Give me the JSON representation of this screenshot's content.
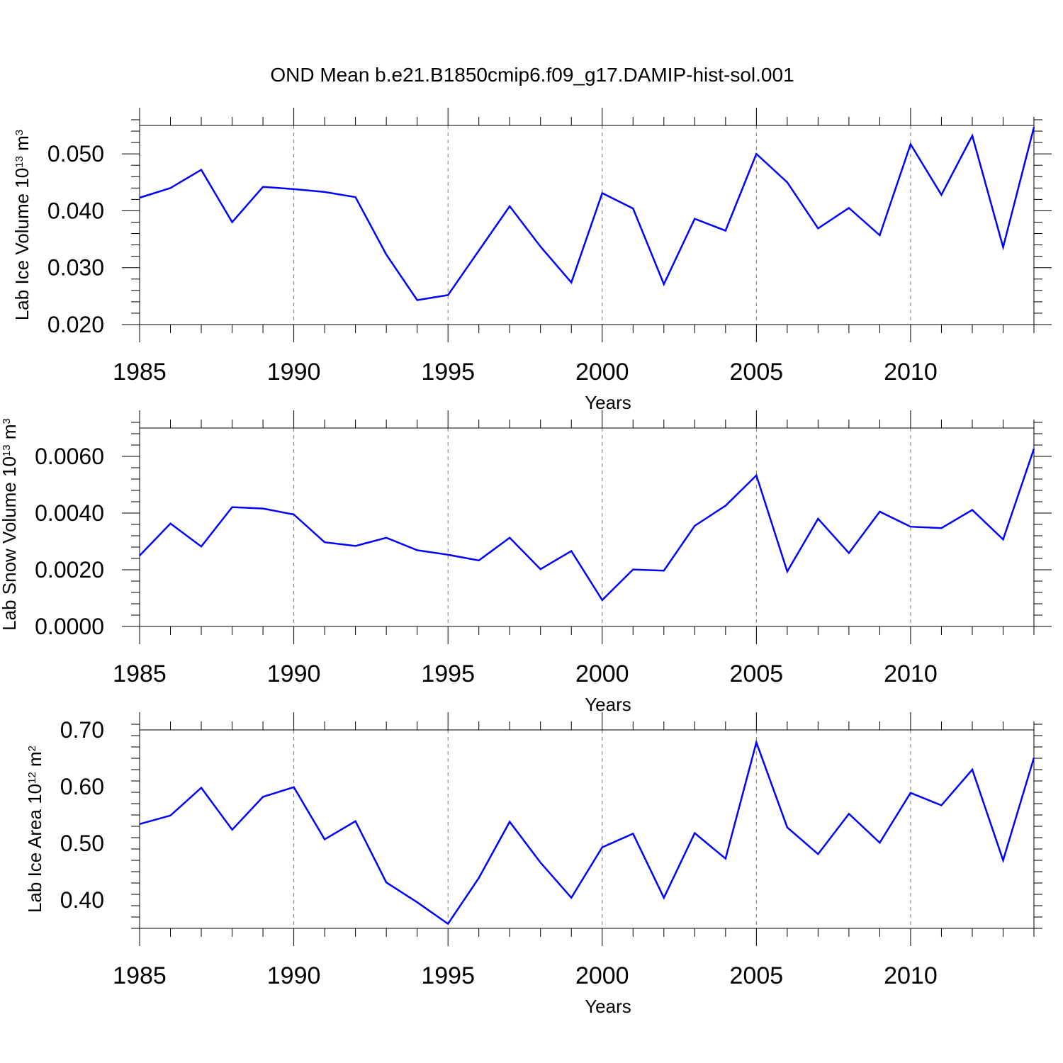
{
  "chart_data": [
    {
      "type": "line",
      "title": "OND Mean b.e21.B1850cmip6.f09_g17.DAMIP-hist-sol.001",
      "xlabel": "Years",
      "ylabel": {
        "main": "Lab Ice Volume 10",
        "exp": "13",
        "mid": " m",
        "unit_exp": "3"
      },
      "xlim": [
        1985,
        2014
      ],
      "ylim": [
        0.02,
        0.055
      ],
      "x_ticks": [
        1985,
        1990,
        1995,
        2000,
        2005,
        2010
      ],
      "x_tick_labels": [
        "1985",
        "1990",
        "1995",
        "2000",
        "2005",
        "2010"
      ],
      "y_ticks": [
        0.02,
        0.03,
        0.04,
        0.05
      ],
      "y_tick_labels": [
        "0.020",
        "0.030",
        "0.040",
        "0.050"
      ],
      "y_minor_step": 0.002,
      "x_grid": "dashed vertical at major ticks",
      "color": "#0000ff",
      "x": [
        1985,
        1986,
        1987,
        1988,
        1989,
        1990,
        1991,
        1992,
        1993,
        1994,
        1995,
        1996,
        1997,
        1998,
        1999,
        2000,
        2001,
        2002,
        2003,
        2004,
        2005,
        2006,
        2007,
        2008,
        2009,
        2010,
        2011,
        2012,
        2013,
        2014
      ],
      "values": [
        0.0423,
        0.044,
        0.0472,
        0.038,
        0.0442,
        0.0438,
        0.0433,
        0.0424,
        0.0323,
        0.0243,
        0.0252,
        0.033,
        0.0408,
        0.0337,
        0.0274,
        0.0431,
        0.0404,
        0.0271,
        0.0386,
        0.0365,
        0.05,
        0.045,
        0.0369,
        0.0405,
        0.0357,
        0.0517,
        0.0428,
        0.0532,
        0.0336,
        0.0547
      ]
    },
    {
      "type": "line",
      "xlabel": "Years",
      "ylabel": {
        "main": "Lab Snow Volume 10",
        "exp": "13",
        "mid": " m",
        "unit_exp": "3"
      },
      "xlim": [
        1985,
        2014
      ],
      "ylim": [
        0.0,
        0.007
      ],
      "x_ticks": [
        1985,
        1990,
        1995,
        2000,
        2005,
        2010
      ],
      "x_tick_labels": [
        "1985",
        "1990",
        "1995",
        "2000",
        "2005",
        "2010"
      ],
      "y_ticks": [
        0.0,
        0.002,
        0.004,
        0.006
      ],
      "y_tick_labels": [
        "0.0000",
        "0.0020",
        "0.0040",
        "0.0060"
      ],
      "y_minor_step": 0.0004,
      "x_grid": "dashed vertical at major ticks",
      "color": "#0000ff",
      "x": [
        1985,
        1986,
        1987,
        1988,
        1989,
        1990,
        1991,
        1992,
        1993,
        1994,
        1995,
        1996,
        1997,
        1998,
        1999,
        2000,
        2001,
        2002,
        2003,
        2004,
        2005,
        2006,
        2007,
        2008,
        2009,
        2010,
        2011,
        2012,
        2013,
        2014
      ],
      "values": [
        0.0025,
        0.00363,
        0.00282,
        0.00421,
        0.00416,
        0.00395,
        0.00297,
        0.00284,
        0.00313,
        0.00269,
        0.00253,
        0.00233,
        0.00313,
        0.00202,
        0.00266,
        0.00093,
        0.00201,
        0.00197,
        0.00355,
        0.00426,
        0.00533,
        0.00194,
        0.0038,
        0.00259,
        0.00405,
        0.00352,
        0.00347,
        0.00411,
        0.00307,
        0.00627
      ]
    },
    {
      "type": "line",
      "xlabel": "Years",
      "ylabel": {
        "main": "Lab Ice Area 10",
        "exp": "12",
        "mid": " m",
        "unit_exp": "2"
      },
      "xlim": [
        1985,
        2014
      ],
      "ylim": [
        0.35,
        0.7
      ],
      "x_ticks": [
        1985,
        1990,
        1995,
        2000,
        2005,
        2010
      ],
      "x_tick_labels": [
        "1985",
        "1990",
        "1995",
        "2000",
        "2005",
        "2010"
      ],
      "y_ticks": [
        0.4,
        0.5,
        0.6,
        0.7
      ],
      "y_tick_labels": [
        "0.40",
        "0.50",
        "0.60",
        "0.70"
      ],
      "y_minor_step": 0.02,
      "x_grid": "dashed vertical at major ticks",
      "color": "#0000ff",
      "x": [
        1985,
        1986,
        1987,
        1988,
        1989,
        1990,
        1991,
        1992,
        1993,
        1994,
        1995,
        1996,
        1997,
        1998,
        1999,
        2000,
        2001,
        2002,
        2003,
        2004,
        2005,
        2006,
        2007,
        2008,
        2009,
        2010,
        2011,
        2012,
        2013,
        2014
      ],
      "values": [
        0.534,
        0.549,
        0.598,
        0.524,
        0.582,
        0.599,
        0.507,
        0.539,
        0.431,
        0.396,
        0.358,
        0.439,
        0.538,
        0.466,
        0.404,
        0.493,
        0.517,
        0.404,
        0.518,
        0.473,
        0.678,
        0.528,
        0.481,
        0.552,
        0.501,
        0.589,
        0.567,
        0.63,
        0.47,
        0.651
      ]
    }
  ]
}
